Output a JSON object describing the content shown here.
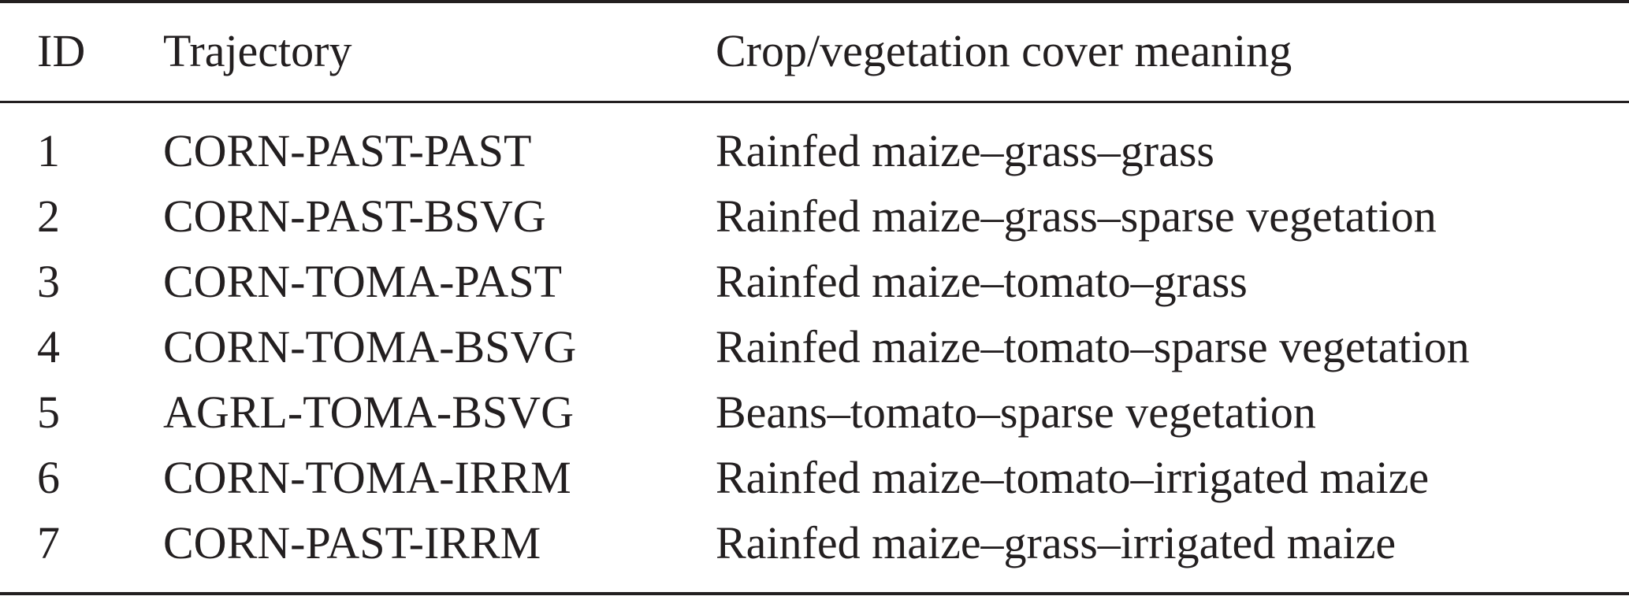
{
  "table": {
    "headers": [
      "ID",
      "Trajectory",
      "Crop/vegetation cover meaning"
    ],
    "rows": [
      [
        "1",
        "CORN-PAST-PAST",
        "Rainfed maize–grass–grass"
      ],
      [
        "2",
        "CORN-PAST-BSVG",
        "Rainfed maize–grass–sparse vegetation"
      ],
      [
        "3",
        "CORN-TOMA-PAST",
        "Rainfed maize–tomato–grass"
      ],
      [
        "4",
        "CORN-TOMA-BSVG",
        "Rainfed maize–tomato–sparse vegetation"
      ],
      [
        "5",
        "AGRL-TOMA-BSVG",
        "Beans–tomato–sparse vegetation"
      ],
      [
        "6",
        "CORN-TOMA-IRRM",
        "Rainfed maize–tomato–irrigated maize"
      ],
      [
        "7",
        "CORN-PAST-IRRM",
        "Rainfed maize–grass–irrigated maize"
      ]
    ]
  }
}
